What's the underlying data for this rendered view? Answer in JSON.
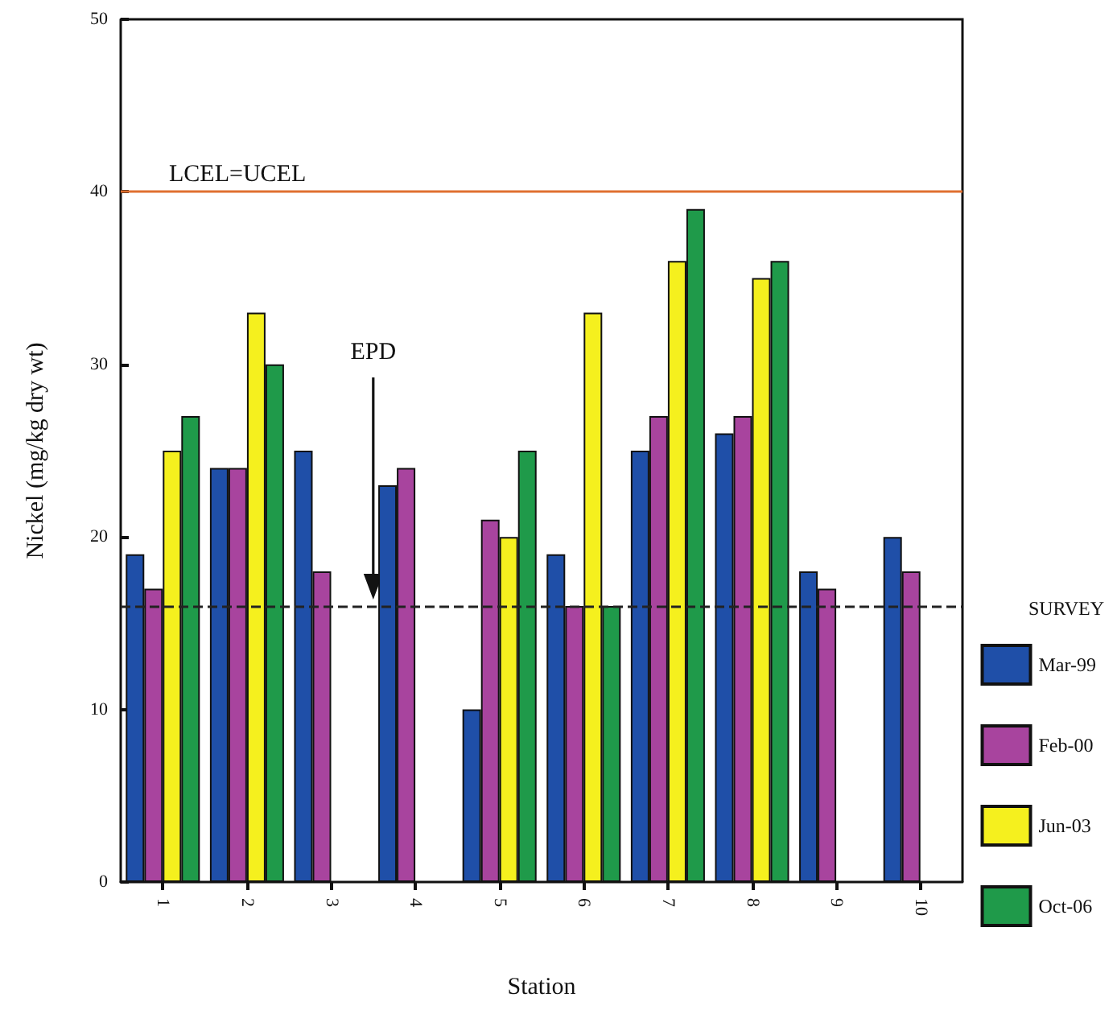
{
  "chart_data": {
    "type": "bar",
    "xlabel": "Station",
    "ylabel": "Nickel (mg/kg dry wt)",
    "legend_title": "SURVEY",
    "categories": [
      "1",
      "2",
      "3",
      "4",
      "5",
      "6",
      "7",
      "8",
      "9",
      "10"
    ],
    "series": [
      {
        "name": "Mar-99",
        "color": "#1f4fa8",
        "values": [
          19,
          24,
          25,
          23,
          10,
          19,
          25,
          26,
          18,
          20
        ]
      },
      {
        "name": "Feb-00",
        "color": "#a8449e",
        "values": [
          17,
          24,
          18,
          24,
          21,
          16,
          27,
          27,
          17,
          18
        ]
      },
      {
        "name": "Jun-03",
        "color": "#f5f01e",
        "values": [
          25,
          33,
          null,
          null,
          20,
          33,
          36,
          35,
          null,
          null
        ]
      },
      {
        "name": "Oct-06",
        "color": "#1f9a4a",
        "values": [
          27,
          30,
          null,
          null,
          25,
          16,
          39,
          36,
          null,
          null
        ]
      }
    ],
    "ylim": [
      0,
      50
    ],
    "yticks": [
      0,
      10,
      20,
      30,
      40,
      50
    ],
    "grid": false,
    "legend": "right",
    "ref_lines": [
      {
        "axis": "y",
        "value": 40,
        "label": "LCEL=UCEL",
        "color": "#e07030",
        "line_style": "solid"
      },
      {
        "axis": "y",
        "value": 16,
        "color": "#222222",
        "line_style": "dashed"
      }
    ],
    "annotations": [
      "EPD"
    ]
  }
}
